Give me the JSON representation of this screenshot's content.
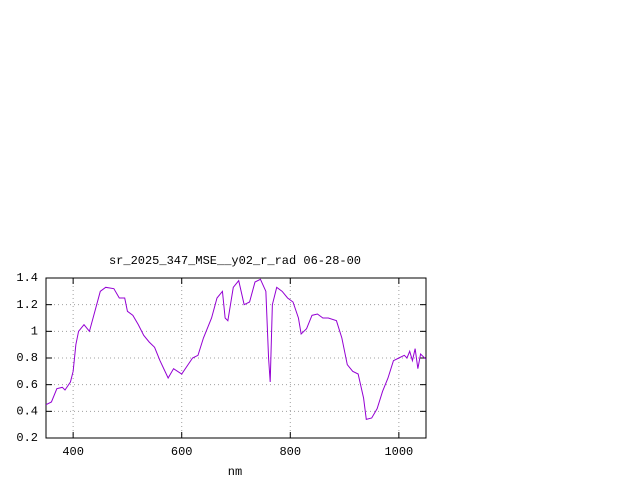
{
  "chart_data": {
    "type": "line",
    "title": "sr_2025_347_MSE__y02_r_rad 06-28-00",
    "x_label": "nm",
    "x": [
      350,
      360,
      370,
      380,
      385,
      395,
      400,
      405,
      410,
      420,
      430,
      440,
      450,
      460,
      475,
      485,
      495,
      500,
      510,
      520,
      530,
      540,
      550,
      560,
      575,
      585,
      600,
      610,
      620,
      630,
      640,
      655,
      665,
      675,
      680,
      685,
      695,
      705,
      715,
      725,
      735,
      745,
      755,
      760,
      763,
      767,
      775,
      785,
      795,
      805,
      815,
      820,
      830,
      840,
      850,
      860,
      870,
      885,
      895,
      905,
      915,
      925,
      935,
      940,
      950,
      960,
      970,
      980,
      990,
      1000,
      1010,
      1015,
      1020,
      1025,
      1030,
      1035,
      1040,
      1050
    ],
    "series": [
      {
        "color": "#9400d3",
        "values": [
          0.45,
          0.47,
          0.57,
          0.58,
          0.56,
          0.62,
          0.7,
          0.9,
          1.0,
          1.05,
          1.0,
          1.15,
          1.3,
          1.33,
          1.32,
          1.25,
          1.25,
          1.15,
          1.12,
          1.05,
          0.97,
          0.92,
          0.88,
          0.78,
          0.65,
          0.72,
          0.68,
          0.74,
          0.8,
          0.82,
          0.95,
          1.1,
          1.25,
          1.3,
          1.1,
          1.08,
          1.33,
          1.38,
          1.2,
          1.22,
          1.37,
          1.39,
          1.3,
          0.8,
          0.62,
          1.2,
          1.33,
          1.3,
          1.25,
          1.22,
          1.1,
          0.98,
          1.02,
          1.12,
          1.13,
          1.1,
          1.1,
          1.08,
          0.95,
          0.75,
          0.7,
          0.68,
          0.5,
          0.34,
          0.35,
          0.42,
          0.55,
          0.65,
          0.78,
          0.8,
          0.82,
          0.8,
          0.85,
          0.78,
          0.87,
          0.72,
          0.83,
          0.79
        ]
      }
    ],
    "xlim": [
      350,
      1050
    ],
    "xticks": [
      400,
      600,
      800,
      1000
    ],
    "ylim": [
      0.2,
      1.4
    ],
    "yticks": [
      0.2,
      0.4,
      0.6,
      0.8,
      1,
      1.2,
      1.4
    ],
    "grid": true
  }
}
